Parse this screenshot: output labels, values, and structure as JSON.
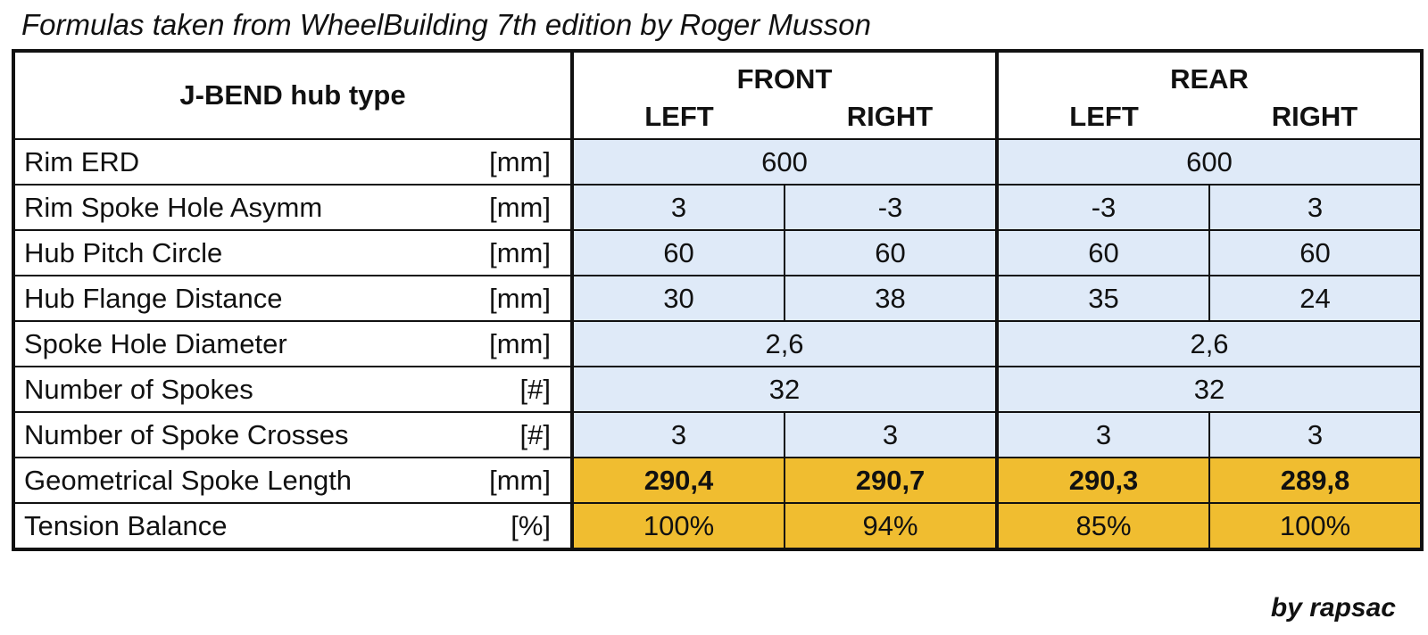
{
  "caption": "Formulas taken from WheelBuilding 7th edition by Roger Musson",
  "credit": "by rapsac",
  "header": {
    "title": "J-BEND hub type",
    "front": "FRONT",
    "rear": "REAR",
    "left": "LEFT",
    "right": "RIGHT"
  },
  "rows": {
    "rim_erd": {
      "label": "Rim ERD",
      "unit": "[mm]",
      "front": "600",
      "rear": "600"
    },
    "rim_asymm": {
      "label": "Rim Spoke Hole Asymm",
      "unit": "[mm]",
      "values": [
        "3",
        "-3",
        "-3",
        "3"
      ]
    },
    "hub_pitch": {
      "label": "Hub Pitch Circle",
      "unit": "[mm]",
      "values": [
        "60",
        "60",
        "60",
        "60"
      ]
    },
    "hub_flange": {
      "label": "Hub Flange Distance",
      "unit": "[mm]",
      "values": [
        "30",
        "38",
        "35",
        "24"
      ]
    },
    "hole_diam": {
      "label": "Spoke Hole Diameter",
      "unit": "[mm]",
      "front": "2,6",
      "rear": "2,6"
    },
    "num_spokes": {
      "label": "Number of Spokes",
      "unit": "[#]",
      "front": "32",
      "rear": "32"
    },
    "num_crosses": {
      "label": "Number of Spoke Crosses",
      "unit": "[#]",
      "values": [
        "3",
        "3",
        "3",
        "3"
      ]
    },
    "spoke_length": {
      "label": "Geometrical Spoke Length",
      "unit": "[mm]",
      "values": [
        "290,4",
        "290,7",
        "290,3",
        "289,8"
      ]
    },
    "tension": {
      "label": "Tension Balance",
      "unit": "[%]",
      "values": [
        "100%",
        "94%",
        "85%",
        "100%"
      ]
    }
  },
  "colors": {
    "input_cell": "#dfeaf8",
    "result_cell": "#f0bd30"
  }
}
